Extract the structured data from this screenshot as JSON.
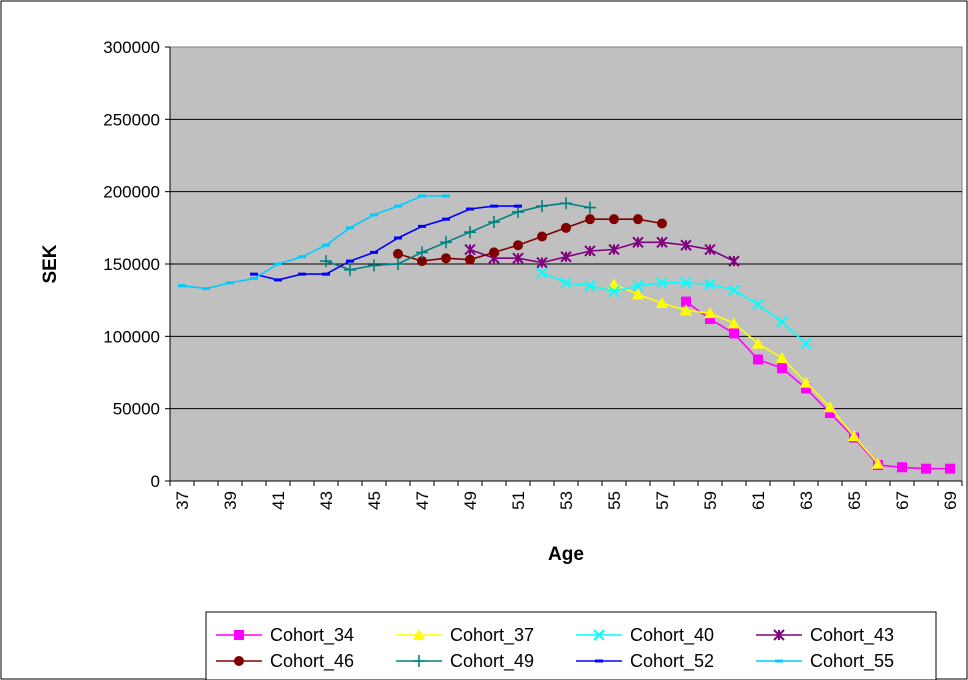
{
  "chart_data": {
    "type": "line",
    "title": "",
    "xlabel": "Age",
    "ylabel": "SEK",
    "xlim": [
      37,
      69
    ],
    "ylim": [
      0,
      300000
    ],
    "x_ticks": [
      "37",
      "39",
      "41",
      "43",
      "45",
      "47",
      "49",
      "51",
      "53",
      "55",
      "57",
      "59",
      "61",
      "63",
      "65",
      "67",
      "69"
    ],
    "y_ticks": [
      "0",
      "50000",
      "100000",
      "150000",
      "200000",
      "250000",
      "300000"
    ],
    "grid": "horizontal",
    "plot_background": "#c0c0c0",
    "legend_position": "bottom",
    "series": [
      {
        "name": "Cohort_34",
        "color": "#ff00ff",
        "marker": "square",
        "x": [
          58,
          59,
          60,
          61,
          62,
          63,
          64,
          65,
          66,
          67,
          68,
          69
        ],
        "y": [
          124000,
          112000,
          102000,
          84000,
          78000,
          64000,
          47000,
          30000,
          11000,
          9500,
          8500,
          8500
        ]
      },
      {
        "name": "Cohort_37",
        "color": "#ffff00",
        "marker": "triangle",
        "x": [
          55,
          56,
          57,
          58,
          59,
          60,
          61,
          62,
          63,
          64,
          65,
          66
        ],
        "y": [
          136000,
          129000,
          123000,
          118000,
          116000,
          109000,
          95000,
          85000,
          68000,
          51000,
          31000,
          12000
        ]
      },
      {
        "name": "Cohort_40",
        "color": "#00ffff",
        "marker": "x",
        "x": [
          52,
          53,
          54,
          55,
          56,
          57,
          58,
          59,
          60,
          61,
          62,
          63
        ],
        "y": [
          144000,
          137000,
          135000,
          131000,
          135000,
          137000,
          137000,
          136000,
          132000,
          122000,
          110000,
          95000
        ]
      },
      {
        "name": "Cohort_43",
        "color": "#800080",
        "marker": "star",
        "x": [
          49,
          50,
          51,
          52,
          53,
          54,
          55,
          56,
          57,
          58,
          59,
          60
        ],
        "y": [
          160000,
          154000,
          154000,
          151000,
          155000,
          159000,
          160000,
          165000,
          165000,
          163000,
          160000,
          152000
        ]
      },
      {
        "name": "Cohort_46",
        "color": "#800000",
        "marker": "circle",
        "x": [
          46,
          47,
          48,
          49,
          50,
          51,
          52,
          53,
          54,
          55,
          56,
          57
        ],
        "y": [
          157000,
          152000,
          154000,
          153000,
          158000,
          163000,
          169000,
          175000,
          181000,
          181000,
          181000,
          178000
        ]
      },
      {
        "name": "Cohort_49",
        "color": "#008080",
        "marker": "plus",
        "x": [
          43,
          44,
          45,
          46,
          47,
          48,
          49,
          50,
          51,
          52,
          53,
          54
        ],
        "y": [
          152000,
          146000,
          149000,
          150000,
          158000,
          165000,
          172000,
          179000,
          186000,
          190000,
          192000,
          189000
        ]
      },
      {
        "name": "Cohort_52",
        "color": "#0000ff",
        "marker": "dash",
        "x": [
          40,
          41,
          42,
          43,
          44,
          45,
          46,
          47,
          48,
          49,
          50,
          51
        ],
        "y": [
          143000,
          139000,
          143000,
          143000,
          152000,
          158000,
          168000,
          176000,
          181000,
          188000,
          190000,
          190000
        ]
      },
      {
        "name": "Cohort_55",
        "color": "#00ccff",
        "marker": "dash",
        "x": [
          37,
          38,
          39,
          40,
          41,
          42,
          43,
          44,
          45,
          46,
          47,
          48
        ],
        "y": [
          135000,
          133000,
          137000,
          140000,
          150000,
          155000,
          163000,
          175000,
          184000,
          190000,
          197000,
          197000
        ]
      }
    ]
  }
}
